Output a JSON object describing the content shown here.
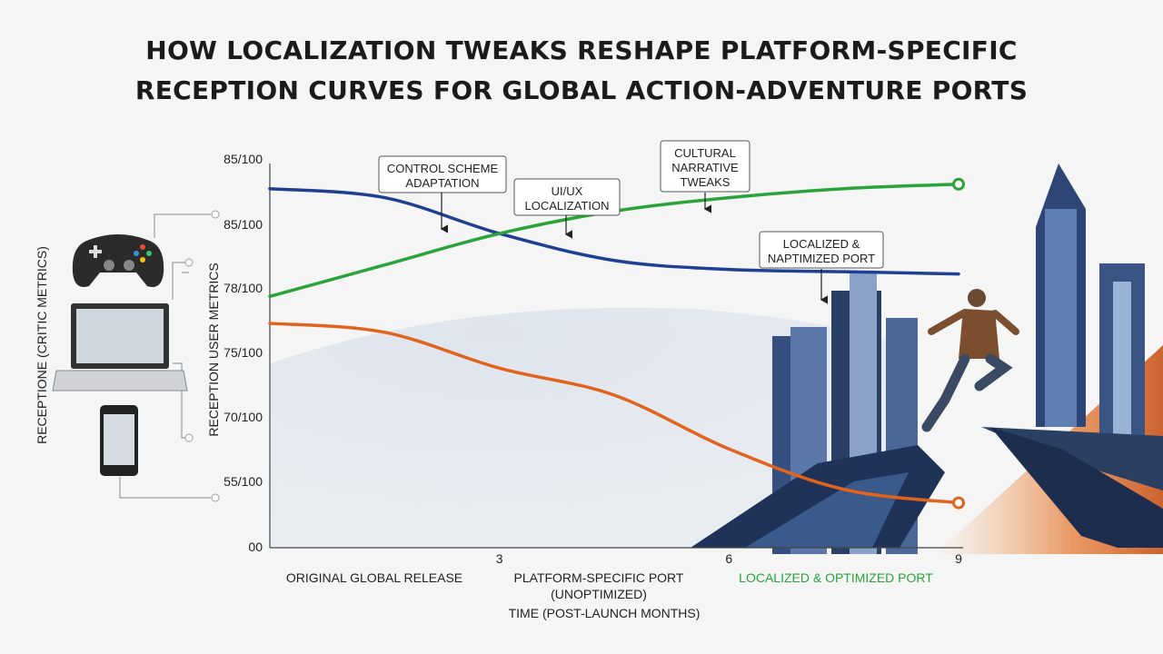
{
  "title_line1": "HOW LOCALIZATION TWEAKS RESHAPE PLATFORM-SPECIFIC",
  "title_line2": "RECEPTION CURVES FOR GLOBAL ACTION-ADVENTURE PORTS",
  "chart_data": {
    "type": "line",
    "title": "HOW LOCALIZATION TWEAKS RESHAPE PLATFORM-SPECIFIC RECEPTION CURVES FOR GLOBAL ACTION-ADVENTURE PORTS",
    "xlabel": "TIME (POST-LAUNCH MONTHS)",
    "ylabel_left": "RECEPTIONE (CRITIC METRICS)",
    "ylabel_right": "RECEPTION USER METRICS",
    "x_ticks": [
      "3",
      "6",
      "9"
    ],
    "y_ticks": [
      "85/100",
      "85/100",
      "78/100",
      "75/100",
      "70/100",
      "55/100",
      "00"
    ],
    "x_range": [
      0,
      9
    ],
    "y_range": [
      0,
      85
    ],
    "categories": [
      "ORIGINAL GLOBAL RELEASE",
      "PLATFORM-SPECIFIC PORT (UNOPTIMIZED)",
      "LOCALIZED & OPTIMIZED PORT"
    ],
    "series": [
      {
        "color": "#1e3f93",
        "x": [
          0,
          1.5,
          3,
          4.5,
          6,
          7.5,
          9
        ],
        "y": [
          80,
          78,
          70,
          64,
          62,
          61.5,
          61
        ]
      },
      {
        "color": "#2aa33a",
        "x": [
          0,
          1.5,
          3,
          4.5,
          6,
          7.5,
          9
        ],
        "y": [
          56,
          63,
          70,
          75,
          78,
          80,
          81
        ]
      },
      {
        "color": "#e0631e",
        "x": [
          0,
          1.5,
          3,
          4.5,
          6,
          7.5,
          9
        ],
        "y": [
          50,
          48,
          40,
          34,
          22,
          13,
          10
        ]
      }
    ],
    "annotations": [
      {
        "lines": [
          "CONTROL SCHEME",
          "ADAPTATION"
        ]
      },
      {
        "lines": [
          "UI/UX",
          "LOCALIZATION"
        ]
      },
      {
        "lines": [
          "CULTURAL",
          "NARRATIVE",
          "TWEAKS"
        ]
      },
      {
        "lines": [
          "LOCALIZED &",
          "NAPTIMIZED PORT"
        ]
      }
    ],
    "legend": "none",
    "grid": false
  },
  "icons": [
    "gamepad-icon",
    "laptop-icon",
    "smartphone-icon"
  ]
}
